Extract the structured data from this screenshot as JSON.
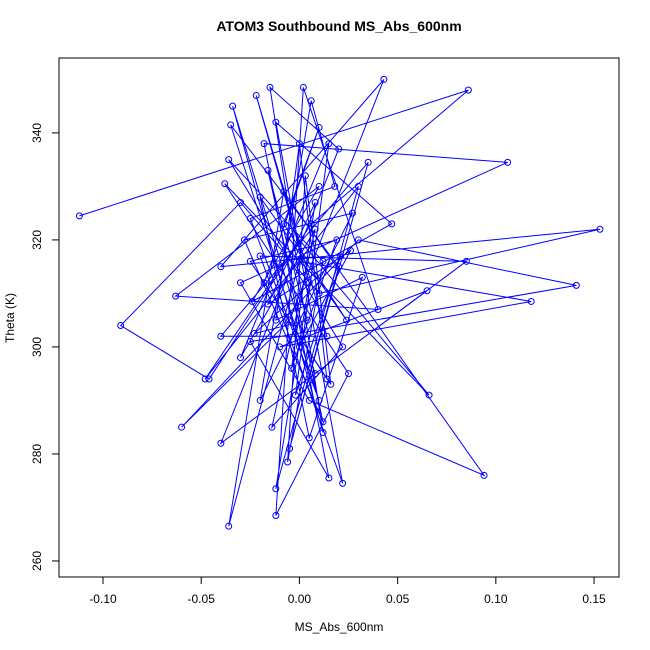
{
  "chart_data": {
    "type": "line",
    "title": "ATOM3 Southbound MS_Abs_600nm",
    "x_label": "MS_Abs_600nm",
    "y_label": "Theta (K)",
    "color": "#0000ff",
    "marker": "circle",
    "x": [
      -0.112,
      0.086,
      0.006,
      -0.046,
      -0.091,
      -0.03,
      0.01,
      0.153,
      -0.04,
      0.043,
      -0.005,
      -0.06,
      0.03,
      0.141,
      -0.025,
      0.015,
      -0.018,
      0.106,
      -0.03,
      0.005,
      0.094,
      -0.008,
      -0.036,
      0.0,
      0.118,
      -0.01,
      0.065,
      -0.04,
      0.02,
      -0.015,
      0.012,
      -0.034,
      0.008,
      0.085,
      -0.02,
      0.022,
      -0.012,
      0.047,
      -0.024,
      0.01,
      -0.063,
      0.04,
      0.002,
      -0.012,
      0.025,
      -0.038,
      0.066,
      0.0,
      -0.048,
      0.03,
      -0.012,
      0.005,
      -0.022,
      0.014,
      -0.04,
      0.035,
      -0.005,
      0.02,
      -0.035,
      0.01,
      -0.025,
      0.018,
      0.006,
      -0.02,
      0.027,
      -0.028,
      0.012,
      -0.016,
      0.004,
      -0.023,
      0.021,
      -0.002,
      0.015,
      -0.03,
      0.008,
      -0.014,
      0.022,
      -0.036,
      0.012,
      -0.006,
      0.003,
      0.016,
      -0.018,
      0.01,
      -0.008,
      0.024,
      -0.02,
      0.005,
      0.032,
      -0.012,
      0.0,
      0.014,
      -0.025,
      0.019,
      -0.004,
      0.008,
      -0.016,
      0.026,
      0.0
    ],
    "values": [
      324.5,
      348,
      323,
      294,
      304,
      327,
      310,
      322,
      315,
      350,
      305,
      285,
      320,
      311.5,
      301,
      275.5,
      338,
      334.5,
      312,
      290,
      276,
      329,
      266.5,
      316,
      308.5,
      300,
      310.5,
      282,
      337,
      348.5,
      284,
      345,
      295,
      316,
      317,
      274.5,
      342,
      323,
      308.5,
      330,
      309.5,
      307,
      348.5,
      268.5,
      295,
      330.5,
      291,
      320,
      294,
      330,
      273.5,
      312,
      347,
      302,
      302,
      334.5,
      281,
      315,
      341.5,
      290,
      324,
      330,
      346,
      290,
      325,
      320,
      286,
      333,
      305,
      302.5,
      317,
      291,
      338,
      298,
      322,
      285,
      300,
      335,
      316,
      278.5,
      332,
      293,
      312,
      341,
      323,
      305,
      328,
      283,
      313,
      305,
      338,
      294,
      316,
      320,
      296,
      327,
      308,
      318,
      300
    ],
    "xlim": [
      -0.1224,
      0.1627
    ],
    "ylim": [
      257.0,
      354.0
    ],
    "xticks": [
      {
        "value": -0.1,
        "label": "-0.10"
      },
      {
        "value": -0.05,
        "label": "-0.05"
      },
      {
        "value": 0,
        "label": "0.00"
      },
      {
        "value": 0.05,
        "label": "0.05"
      },
      {
        "value": 0.1,
        "label": "0.10"
      },
      {
        "value": 0.15,
        "label": "0.15"
      }
    ],
    "yticks": [
      260,
      280,
      300,
      320,
      340
    ]
  }
}
